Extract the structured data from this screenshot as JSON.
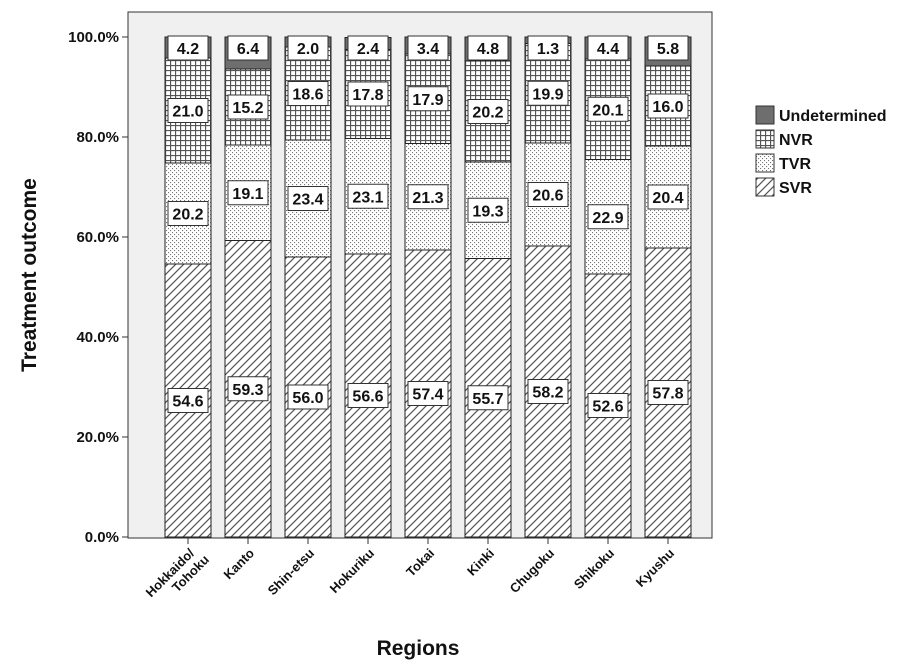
{
  "chart_data": {
    "type": "bar",
    "stacked": true,
    "percent_stacked": true,
    "xlabel": "Regions",
    "ylabel": "Treatment outcome",
    "ylim": [
      0,
      100
    ],
    "y_ticks": [
      "0.0%",
      "20.0%",
      "40.0%",
      "60.0%",
      "80.0%",
      "100.0%"
    ],
    "categories": [
      [
        "Hokkaido/",
        "Tohoku"
      ],
      [
        "Kanto"
      ],
      [
        "Shin-etsu"
      ],
      [
        "Hokuriku"
      ],
      [
        "Tokai"
      ],
      [
        "Kinki"
      ],
      [
        "Chugoku"
      ],
      [
        "Shikoku"
      ],
      [
        "Kyushu"
      ]
    ],
    "series": [
      {
        "name": "SVR",
        "pattern": "diagonal-hatch",
        "values": [
          54.6,
          59.3,
          56.0,
          56.6,
          57.4,
          55.7,
          58.2,
          52.6,
          57.8
        ],
        "labels": [
          "54.6",
          "59.3",
          "56.0",
          "56.6",
          "57.4",
          "55.7",
          "58.2",
          "52.6",
          "57.8"
        ]
      },
      {
        "name": "TVR",
        "pattern": "dotted",
        "values": [
          20.2,
          19.1,
          23.4,
          23.1,
          21.3,
          19.3,
          20.6,
          22.9,
          20.4
        ],
        "labels": [
          "20.2",
          "19.1",
          "23.4",
          "23.1",
          "21.3",
          "19.3",
          "20.6",
          "22.9",
          "20.4"
        ]
      },
      {
        "name": "NVR",
        "pattern": "crosshatch",
        "values": [
          21.0,
          15.2,
          18.6,
          17.8,
          17.9,
          20.2,
          19.9,
          20.1,
          16.0
        ],
        "labels": [
          "21.0",
          "15.2",
          "18.6",
          "17.8",
          "17.9",
          "20.2",
          "19.9",
          "20.1",
          "16.0"
        ]
      },
      {
        "name": "Undetermined",
        "pattern": "solid-gray",
        "values": [
          4.2,
          6.4,
          2.0,
          2.4,
          3.4,
          4.8,
          1.3,
          4.4,
          5.8
        ],
        "labels": [
          "4.2",
          "6.4",
          "2.0",
          "2.4",
          "3.4",
          "4.8",
          "1.3",
          "4.4",
          "5.8"
        ]
      }
    ],
    "legend": {
      "placement": "right",
      "order": [
        "Undetermined",
        "NVR",
        "TVR",
        "SVR"
      ]
    },
    "grid": false,
    "colors": {
      "plot_background": "#f0f0f0",
      "bar_fill": "#ffffff",
      "hatch": "#555555",
      "undetermined": "#6e6e6e",
      "outline": "#222222"
    }
  }
}
